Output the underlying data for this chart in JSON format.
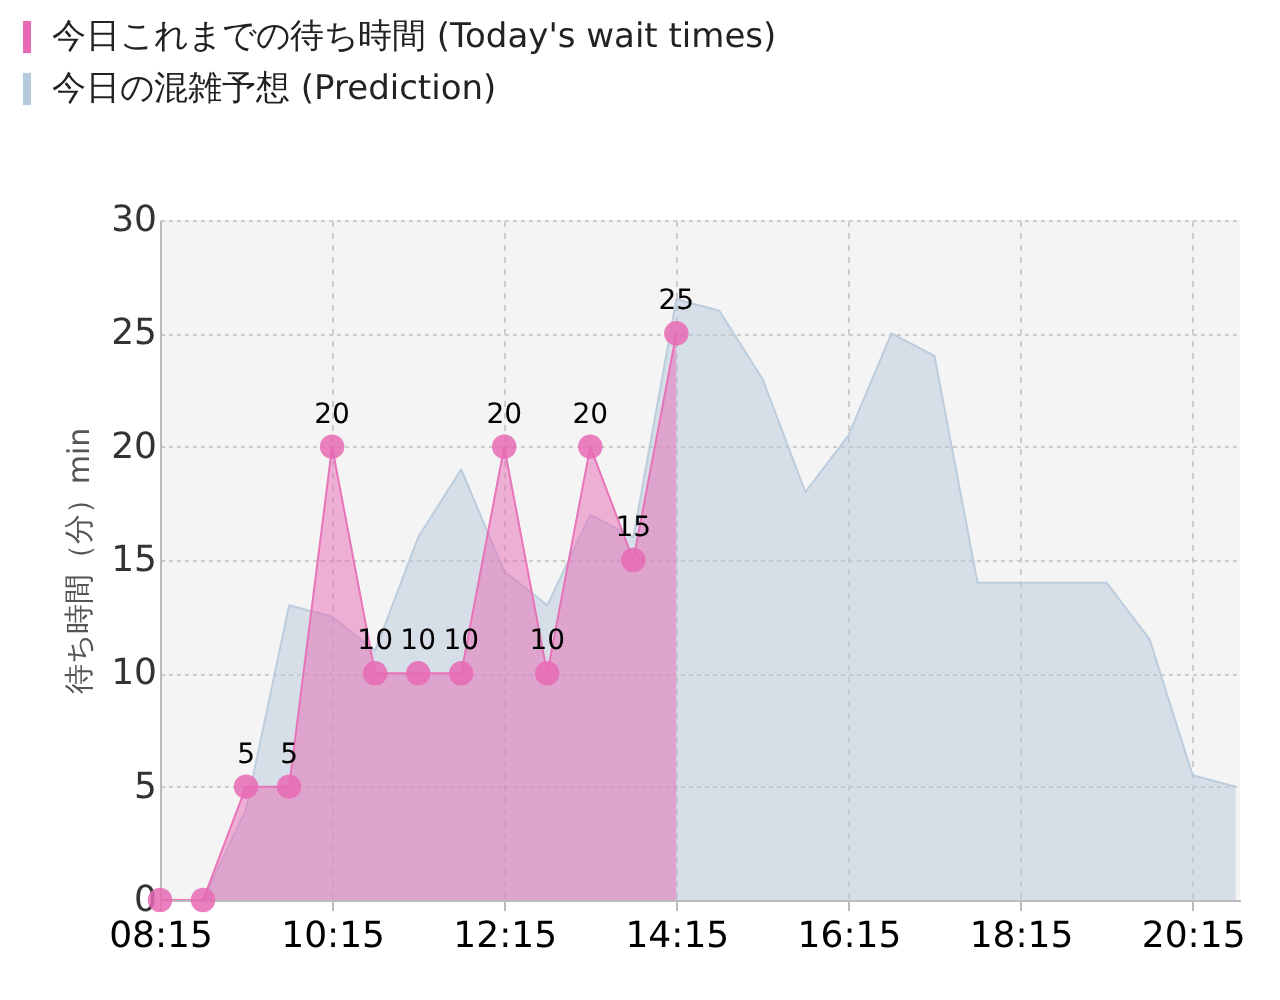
{
  "chart_data": {
    "type": "area",
    "ylabel": "待ち時間（分）min",
    "x": [
      8.25,
      8.75,
      9.25,
      9.75,
      10.25,
      10.75,
      11.25,
      11.75,
      12.25,
      12.75,
      13.25,
      13.75,
      14.25
    ],
    "xlim": [
      8.25,
      20.8
    ],
    "xticks": [
      {
        "value": 8.25,
        "label": "08:15"
      },
      {
        "value": 10.25,
        "label": "10:15"
      },
      {
        "value": 12.25,
        "label": "12:15"
      },
      {
        "value": 14.25,
        "label": "14:15"
      },
      {
        "value": 16.25,
        "label": "16:15"
      },
      {
        "value": 18.25,
        "label": "18:15"
      },
      {
        "value": 20.25,
        "label": "20:15"
      }
    ],
    "ylim": [
      0,
      30
    ],
    "yticks": [
      0,
      5,
      10,
      15,
      20,
      25,
      30
    ],
    "grid": true,
    "legend": "top left",
    "series": [
      {
        "name": "今日これまでの待ち時間   (Today's wait times)",
        "color": "#e86ab4",
        "marker": "circle",
        "values": [
          0,
          0,
          5,
          5,
          20,
          10,
          10,
          10,
          20,
          10,
          20,
          15,
          25
        ],
        "value_labels": [
          null,
          null,
          "5",
          "5",
          "20",
          "10",
          "10",
          "10",
          "20",
          "10",
          "20",
          "15",
          "25"
        ]
      },
      {
        "name": "今日の混雑予想              (Prediction)",
        "color": "#b7cadb",
        "x": [
          8.25,
          8.75,
          9.25,
          9.75,
          10.25,
          10.75,
          11.25,
          11.75,
          12.25,
          12.75,
          13.25,
          13.75,
          14.25,
          14.75,
          15.25,
          15.75,
          16.25,
          16.75,
          17.25,
          17.75,
          18.25,
          18.75,
          19.25,
          19.75,
          20.25,
          20.75
        ],
        "values": [
          0,
          0,
          4,
          13,
          12.5,
          11,
          16,
          19,
          14.5,
          13,
          17,
          16,
          26.5,
          26,
          23,
          18,
          20.5,
          25,
          24,
          14,
          14,
          14,
          14,
          11.5,
          5.5,
          5
        ]
      }
    ]
  }
}
